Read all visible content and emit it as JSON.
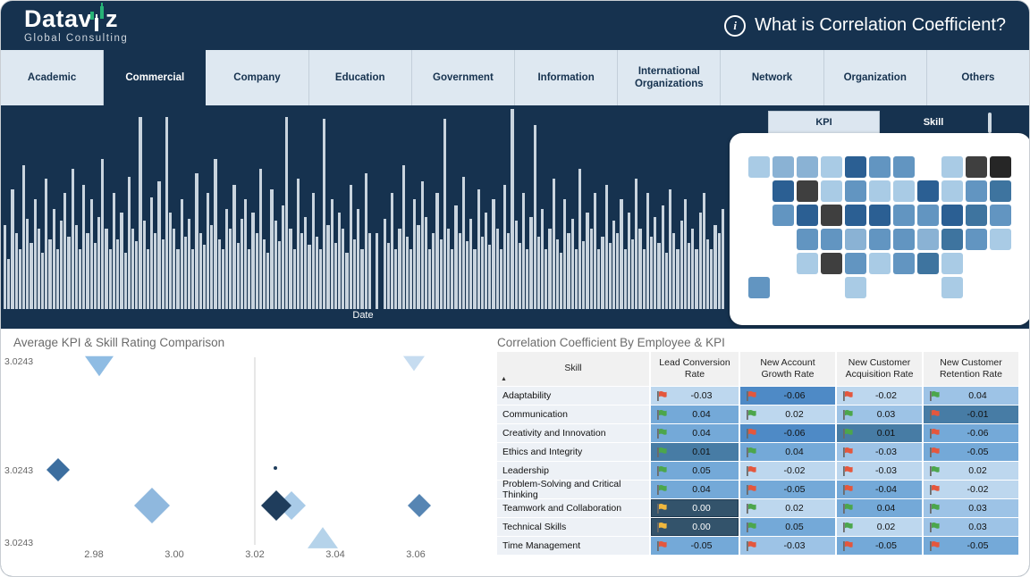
{
  "header": {
    "logo_title_left": "Datav",
    "logo_title_right": "z",
    "logo_subtitle": "Global Consulting",
    "title": "What is Correlation Coefficient?",
    "info_icon": "i"
  },
  "tabs": {
    "items": [
      "Academic",
      "Commercial",
      "Company",
      "Education",
      "Government",
      "Information",
      "International Organizations",
      "Network",
      "Organization",
      "Others"
    ],
    "active": "Commercial"
  },
  "toggle": {
    "kpi_label": "KPI",
    "skill_label": "Skill",
    "active": "KPI"
  },
  "colors": {
    "navy": "#16324F",
    "bar": "#C9D4DE",
    "tab_bg": "#DEE8F1",
    "cell_bg": {
      "b1": "#BDD7EE",
      "b2": "#9DC3E6",
      "b3": "#74A9D8",
      "b4": "#4E8AC6",
      "b5": "#477CA5",
      "b6": "#33536B"
    },
    "flag": {
      "red": "#E4573D",
      "green": "#4CA64C",
      "yellow": "#EFB73E"
    },
    "map_shades": {
      "l1": "#A9CBE5",
      "l2": "#8AB2D4",
      "m": "#6295C1",
      "d2": "#3E749F",
      "d": "#2B5F93",
      "g": "#3F3F3F",
      "k": "#262626"
    }
  },
  "chart_data": [
    {
      "type": "bar",
      "title": "",
      "xlabel": "Date",
      "ylabel": "",
      "note": "dense date-histogram slicer, values approximate (% of plot height)",
      "values": [
        42,
        25,
        60,
        38,
        30,
        72,
        45,
        33,
        55,
        40,
        28,
        65,
        35,
        50,
        30,
        44,
        58,
        36,
        70,
        42,
        30,
        62,
        38,
        55,
        33,
        46,
        75,
        40,
        30,
        58,
        35,
        48,
        28,
        66,
        40,
        34,
        96,
        44,
        30,
        56,
        38,
        64,
        35,
        96,
        48,
        40,
        30,
        55,
        36,
        45,
        30,
        68,
        38,
        32,
        58,
        42,
        75,
        35,
        30,
        50,
        40,
        62,
        33,
        45,
        55,
        30,
        48,
        38,
        70,
        35,
        28,
        60,
        44,
        34,
        52,
        96,
        40,
        30,
        65,
        38,
        46,
        32,
        58,
        36,
        30,
        95,
        42,
        55,
        33,
        48,
        40,
        28,
        62,
        35,
        50,
        30,
        68,
        38,
        0,
        38,
        0,
        45,
        33,
        58,
        30,
        40,
        72,
        36,
        30,
        55,
        42,
        64,
        46,
        30,
        38,
        58,
        35,
        95,
        40,
        30,
        52,
        38,
        66,
        34,
        45,
        30,
        60,
        36,
        48,
        32,
        55,
        40,
        30,
        62,
        38,
        100,
        44,
        33,
        58,
        30,
        46,
        92,
        36,
        50,
        30,
        40,
        65,
        35,
        28,
        55,
        38,
        45,
        30,
        70,
        34,
        48,
        40,
        58,
        30,
        36,
        62,
        33,
        44,
        38,
        55,
        30,
        48,
        35,
        65,
        40,
        30,
        58,
        36,
        46,
        33,
        52,
        28,
        60,
        38,
        30,
        44,
        55,
        33,
        40,
        30,
        48,
        58,
        35,
        30,
        42,
        38,
        50
      ]
    },
    {
      "type": "scatter",
      "title": "Average KPI & Skill Rating Comparison",
      "x_ticks": [
        {
          "label": "2.98",
          "px": 104
        },
        {
          "label": "3.00",
          "px": 194
        },
        {
          "label": "3.02",
          "px": 284
        },
        {
          "label": "3.04",
          "px": 374
        },
        {
          "label": "3.06",
          "px": 464
        }
      ],
      "y_ticks": [
        {
          "label": "3.0243",
          "py": 14
        },
        {
          "label": "3.0243",
          "py": 136
        },
        {
          "label": "3.0243",
          "py": 217
        }
      ],
      "gridline_x": 284,
      "points": [
        {
          "shape": "tri-down",
          "x": 110,
          "y": 16,
          "size": 16,
          "color": "#8FBCE3"
        },
        {
          "shape": "tri-down",
          "x": 462,
          "y": 13,
          "size": 12,
          "color": "#C6DCF0"
        },
        {
          "shape": "diamond",
          "x": 64,
          "y": 132,
          "size": 13,
          "color": "#3C6E9F"
        },
        {
          "shape": "diamond",
          "x": 169,
          "y": 172,
          "size": 20,
          "color": "#8FB8DE"
        },
        {
          "shape": "diamond",
          "x": 325,
          "y": 172,
          "size": 16,
          "color": "#A9CBE8"
        },
        {
          "shape": "diamond",
          "x": 308,
          "y": 172,
          "size": 17,
          "color": "#1F3D5C"
        },
        {
          "shape": "dot",
          "x": 307,
          "y": 130,
          "size": 2,
          "color": "#1F3D5C"
        },
        {
          "shape": "tri-up",
          "x": 360,
          "y": 208,
          "size": 17,
          "color": "#B5D3EA"
        },
        {
          "shape": "diamond",
          "x": 468,
          "y": 172,
          "size": 13,
          "color": "#5685B3"
        }
      ]
    },
    {
      "type": "heatmap",
      "subtype": "us-choropleth-tilegrid",
      "title": "",
      "states": [
        {
          "s": "AK",
          "c": "l1",
          "x": 0,
          "y": 0
        },
        {
          "s": "WA",
          "c": "l2",
          "x": 1,
          "y": 0
        },
        {
          "s": "MT",
          "c": "l2",
          "x": 2,
          "y": 0
        },
        {
          "s": "ND",
          "c": "l1",
          "x": 3,
          "y": 0
        },
        {
          "s": "MN",
          "c": "d",
          "x": 4,
          "y": 0
        },
        {
          "s": "WI",
          "c": "m",
          "x": 5,
          "y": 0
        },
        {
          "s": "MI",
          "c": "m",
          "x": 6,
          "y": 0
        },
        {
          "s": "NY",
          "c": "l1",
          "x": 8,
          "y": 0
        },
        {
          "s": "VT",
          "c": "g",
          "x": 9,
          "y": 0
        },
        {
          "s": "ME",
          "c": "k",
          "x": 10,
          "y": 0
        },
        {
          "s": "OR",
          "c": "d",
          "x": 1,
          "y": 1
        },
        {
          "s": "ID",
          "c": "g",
          "x": 2,
          "y": 1
        },
        {
          "s": "SD",
          "c": "l1",
          "x": 3,
          "y": 1
        },
        {
          "s": "IA",
          "c": "m",
          "x": 4,
          "y": 1
        },
        {
          "s": "IL",
          "c": "l1",
          "x": 5,
          "y": 1
        },
        {
          "s": "IN",
          "c": "l1",
          "x": 6,
          "y": 1
        },
        {
          "s": "OH",
          "c": "d",
          "x": 7,
          "y": 1
        },
        {
          "s": "PA",
          "c": "l1",
          "x": 8,
          "y": 1
        },
        {
          "s": "NJ",
          "c": "m",
          "x": 9,
          "y": 1
        },
        {
          "s": "MA",
          "c": "d2",
          "x": 10,
          "y": 1
        },
        {
          "s": "CA",
          "c": "m",
          "x": 1,
          "y": 2
        },
        {
          "s": "NV",
          "c": "d",
          "x": 2,
          "y": 2
        },
        {
          "s": "WY",
          "c": "g",
          "x": 3,
          "y": 2
        },
        {
          "s": "NE",
          "c": "d",
          "x": 4,
          "y": 2
        },
        {
          "s": "MO",
          "c": "d",
          "x": 5,
          "y": 2
        },
        {
          "s": "KY",
          "c": "m",
          "x": 6,
          "y": 2
        },
        {
          "s": "WV",
          "c": "m",
          "x": 7,
          "y": 2
        },
        {
          "s": "VA",
          "c": "d",
          "x": 8,
          "y": 2
        },
        {
          "s": "MD",
          "c": "d2",
          "x": 9,
          "y": 2
        },
        {
          "s": "CT",
          "c": "m",
          "x": 10,
          "y": 2
        },
        {
          "s": "UT",
          "c": "m",
          "x": 2,
          "y": 3
        },
        {
          "s": "CO",
          "c": "m",
          "x": 3,
          "y": 3
        },
        {
          "s": "KS",
          "c": "l2",
          "x": 4,
          "y": 3
        },
        {
          "s": "AR",
          "c": "m",
          "x": 5,
          "y": 3
        },
        {
          "s": "TN",
          "c": "m",
          "x": 6,
          "y": 3
        },
        {
          "s": "NC",
          "c": "l2",
          "x": 7,
          "y": 3
        },
        {
          "s": "SC",
          "c": "d2",
          "x": 8,
          "y": 3
        },
        {
          "s": "DE",
          "c": "m",
          "x": 9,
          "y": 3
        },
        {
          "s": "RI",
          "c": "l1",
          "x": 10,
          "y": 3
        },
        {
          "s": "AZ",
          "c": "l1",
          "x": 2,
          "y": 4
        },
        {
          "s": "NM",
          "c": "g",
          "x": 3,
          "y": 4
        },
        {
          "s": "OK",
          "c": "m",
          "x": 4,
          "y": 4
        },
        {
          "s": "LA",
          "c": "l1",
          "x": 5,
          "y": 4
        },
        {
          "s": "MS",
          "c": "m",
          "x": 6,
          "y": 4
        },
        {
          "s": "AL",
          "c": "d2",
          "x": 7,
          "y": 4
        },
        {
          "s": "GA",
          "c": "l1",
          "x": 8,
          "y": 4
        },
        {
          "s": "HI",
          "c": "m",
          "x": 0,
          "y": 5
        },
        {
          "s": "TX",
          "c": "l1",
          "x": 4,
          "y": 5
        },
        {
          "s": "FL",
          "c": "l1",
          "x": 8,
          "y": 5
        }
      ]
    },
    {
      "type": "table",
      "title": "Correlation Coefficient By Employee & KPI",
      "sort_indicator": "▲",
      "columns": [
        "Skill",
        "Lead Conversion Rate",
        "New Account Growth Rate",
        "New Customer Acquisition Rate",
        "New Customer Retention Rate"
      ],
      "rows": [
        {
          "skill": "Adaptability",
          "cells": [
            {
              "v": "-0.03",
              "flag": "red",
              "bg": "b1"
            },
            {
              "v": "-0.06",
              "flag": "red",
              "bg": "b4"
            },
            {
              "v": "-0.02",
              "flag": "red",
              "bg": "b1"
            },
            {
              "v": "0.04",
              "flag": "green",
              "bg": "b2"
            }
          ]
        },
        {
          "skill": "Communication",
          "cells": [
            {
              "v": "0.04",
              "flag": "green",
              "bg": "b3"
            },
            {
              "v": "0.02",
              "flag": "green",
              "bg": "b1"
            },
            {
              "v": "0.03",
              "flag": "green",
              "bg": "b2"
            },
            {
              "v": "-0.01",
              "flag": "red",
              "bg": "b5"
            }
          ]
        },
        {
          "skill": "Creativity and Innovation",
          "cells": [
            {
              "v": "0.04",
              "flag": "green",
              "bg": "b3"
            },
            {
              "v": "-0.06",
              "flag": "red",
              "bg": "b4"
            },
            {
              "v": "0.01",
              "flag": "green",
              "bg": "b5"
            },
            {
              "v": "-0.06",
              "flag": "red",
              "bg": "b3"
            }
          ]
        },
        {
          "skill": "Ethics and Integrity",
          "cells": [
            {
              "v": "0.01",
              "flag": "green",
              "bg": "b5"
            },
            {
              "v": "0.04",
              "flag": "green",
              "bg": "b3"
            },
            {
              "v": "-0.03",
              "flag": "red",
              "bg": "b2"
            },
            {
              "v": "-0.05",
              "flag": "red",
              "bg": "b3"
            }
          ]
        },
        {
          "skill": "Leadership",
          "cells": [
            {
              "v": "0.05",
              "flag": "green",
              "bg": "b3"
            },
            {
              "v": "-0.02",
              "flag": "red",
              "bg": "b1"
            },
            {
              "v": "-0.03",
              "flag": "red",
              "bg": "b1"
            },
            {
              "v": "0.02",
              "flag": "green",
              "bg": "b1"
            }
          ]
        },
        {
          "skill": "Problem-Solving and Critical Thinking",
          "cells": [
            {
              "v": "0.04",
              "flag": "green",
              "bg": "b3"
            },
            {
              "v": "-0.05",
              "flag": "red",
              "bg": "b3"
            },
            {
              "v": "-0.04",
              "flag": "red",
              "bg": "b3"
            },
            {
              "v": "-0.02",
              "flag": "red",
              "bg": "b1"
            }
          ]
        },
        {
          "skill": "Teamwork and Collaboration",
          "cells": [
            {
              "v": "0.00",
              "flag": "yellow",
              "bg": "b6"
            },
            {
              "v": "0.02",
              "flag": "green",
              "bg": "b1"
            },
            {
              "v": "0.04",
              "flag": "green",
              "bg": "b3"
            },
            {
              "v": "0.03",
              "flag": "green",
              "bg": "b2"
            }
          ]
        },
        {
          "skill": "Technical Skills",
          "cells": [
            {
              "v": "0.00",
              "flag": "yellow",
              "bg": "b6"
            },
            {
              "v": "0.05",
              "flag": "green",
              "bg": "b3"
            },
            {
              "v": "0.02",
              "flag": "green",
              "bg": "b1"
            },
            {
              "v": "0.03",
              "flag": "green",
              "bg": "b2"
            }
          ]
        },
        {
          "skill": "Time Management",
          "cells": [
            {
              "v": "-0.05",
              "flag": "red",
              "bg": "b3"
            },
            {
              "v": "-0.03",
              "flag": "red",
              "bg": "b2"
            },
            {
              "v": "-0.05",
              "flag": "red",
              "bg": "b3"
            },
            {
              "v": "-0.05",
              "flag": "red",
              "bg": "b3"
            }
          ]
        }
      ]
    }
  ]
}
